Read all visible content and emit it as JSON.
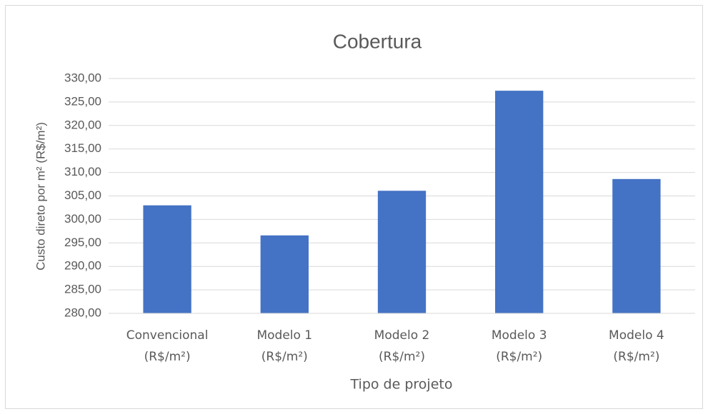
{
  "chart_data": {
    "type": "bar",
    "title": "Cobertura",
    "x_label": "Tipo de projeto",
    "y_label": "Custo direto por m² (R$/m²)",
    "categories": [
      "Convencional\n(R$/m²)",
      "Modelo 1\n(R$/m²)",
      "Modelo 2\n(R$/m²)",
      "Modelo 3\n(R$/m²)",
      "Modelo 4\n(R$/m²)"
    ],
    "values": [
      303.0,
      296.6,
      306.1,
      327.4,
      308.6
    ],
    "color": "#4472c4",
    "ylim": [
      280,
      330
    ],
    "yticks": [
      {
        "value": 280,
        "label": "280,00"
      },
      {
        "value": 285,
        "label": "285,00"
      },
      {
        "value": 290,
        "label": "290,00"
      },
      {
        "value": 295,
        "label": "295,00"
      },
      {
        "value": 300,
        "label": "300,00"
      },
      {
        "value": 305,
        "label": "305,00"
      },
      {
        "value": 310,
        "label": "310,00"
      },
      {
        "value": 315,
        "label": "315,00"
      },
      {
        "value": 320,
        "label": "320,00"
      },
      {
        "value": 325,
        "label": "325,00"
      },
      {
        "value": 330,
        "label": "330,00"
      }
    ],
    "grid": true
  }
}
